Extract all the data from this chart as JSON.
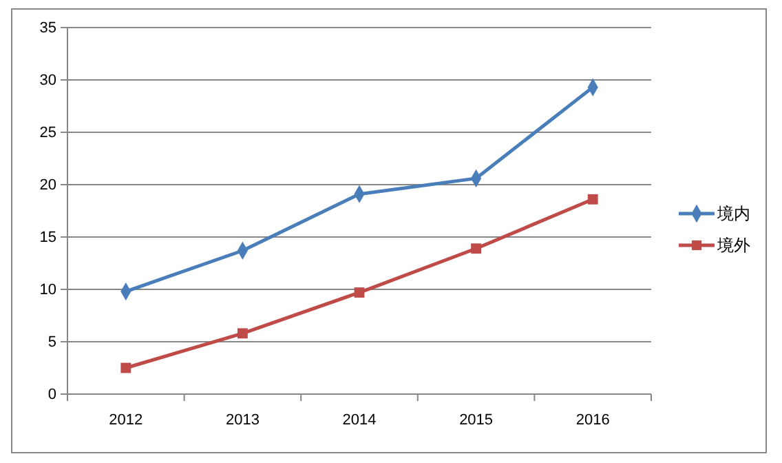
{
  "chart_data": {
    "type": "line",
    "categories": [
      "2012",
      "2013",
      "2014",
      "2015",
      "2016"
    ],
    "series": [
      {
        "name": "境内",
        "color": "#4a7ebb",
        "values": [
          9.8,
          13.7,
          19.1,
          20.6,
          29.3
        ],
        "marker": "diamond"
      },
      {
        "name": "境外",
        "color": "#be4b48",
        "values": [
          2.5,
          5.8,
          9.7,
          13.9,
          18.6
        ],
        "marker": "square"
      }
    ],
    "ylim": [
      0,
      35
    ],
    "yticks": [
      0,
      5,
      10,
      15,
      20,
      25,
      30,
      35
    ],
    "grid": "y",
    "legend": "right",
    "line_style": "solid"
  }
}
